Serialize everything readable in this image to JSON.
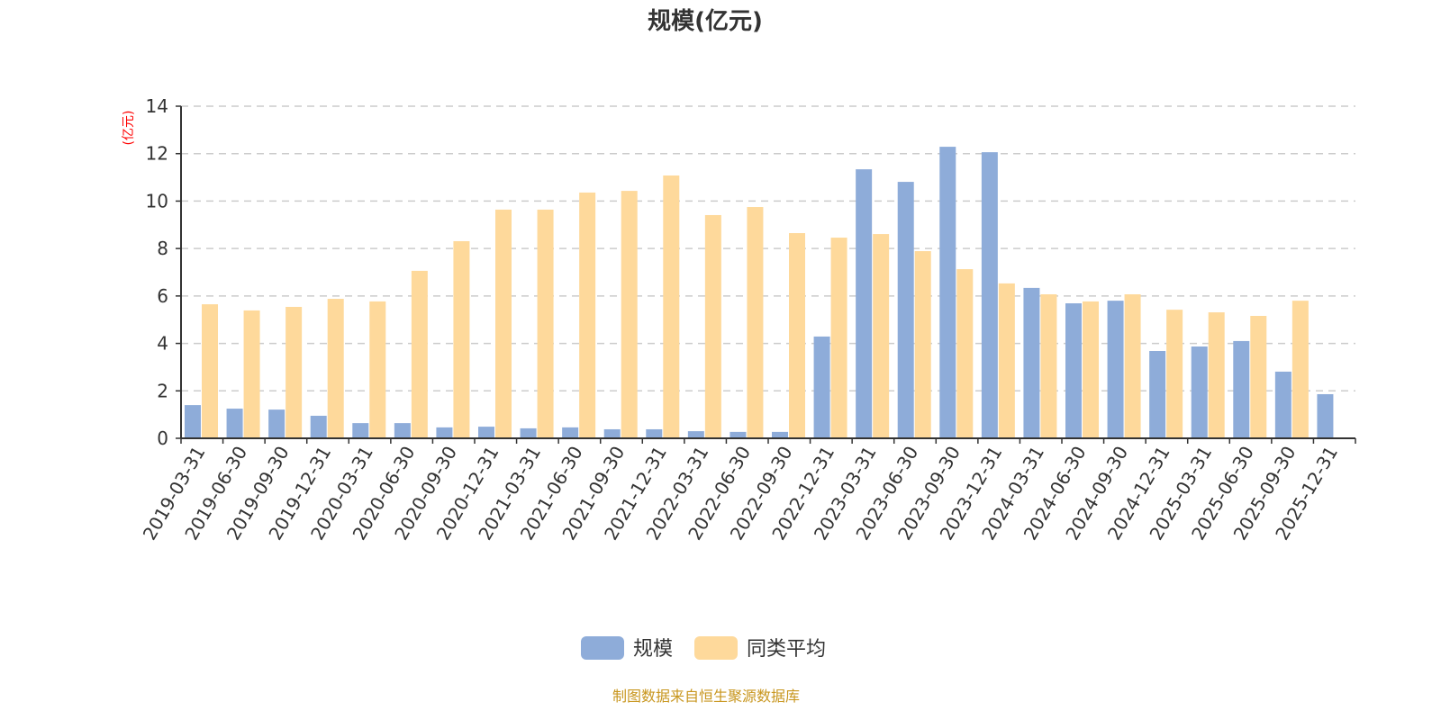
{
  "chart_data": {
    "type": "bar",
    "title": "规模(亿元)",
    "ylabel": "(亿元)",
    "xlabel": "",
    "ylim": [
      0,
      14
    ],
    "yticks": [
      0,
      2,
      4,
      6,
      8,
      10,
      12,
      14
    ],
    "grid": true,
    "legend_placement": "bottom-center",
    "categories": [
      "2019-03-31",
      "2019-06-30",
      "2019-09-30",
      "2019-12-31",
      "2020-03-31",
      "2020-06-30",
      "2020-09-30",
      "2020-12-31",
      "2021-03-31",
      "2021-06-30",
      "2021-09-30",
      "2021-12-31",
      "2022-03-31",
      "2022-06-30",
      "2022-09-30",
      "2022-12-31",
      "2023-03-31",
      "2023-06-30",
      "2023-09-30",
      "2023-12-31",
      "2024-03-31",
      "2024-06-30",
      "2024-09-30",
      "2024-12-31",
      "2025-03-31",
      "2025-06-30",
      "2025-09-30",
      "2025-12-31"
    ],
    "series": [
      {
        "name": "规模",
        "color": "#8eacd9",
        "values": [
          1.4,
          1.25,
          1.21,
          0.95,
          0.64,
          0.64,
          0.46,
          0.49,
          0.42,
          0.46,
          0.38,
          0.38,
          0.3,
          0.27,
          0.27,
          4.29,
          11.34,
          10.81,
          12.29,
          12.06,
          6.34,
          5.69,
          5.8,
          3.68,
          3.87,
          4.1,
          2.81,
          1.86
        ]
      },
      {
        "name": "同类平均",
        "color": "#fed99b",
        "values": [
          5.65,
          5.39,
          5.54,
          5.88,
          5.77,
          7.06,
          8.31,
          9.64,
          9.64,
          10.36,
          10.43,
          11.08,
          9.41,
          9.75,
          8.65,
          8.46,
          8.61,
          7.89,
          7.13,
          6.53,
          6.07,
          5.77,
          6.07,
          5.42,
          5.31,
          5.16,
          5.8,
          null
        ]
      }
    ]
  },
  "footer": "制图数据来自恒生聚源数据库"
}
